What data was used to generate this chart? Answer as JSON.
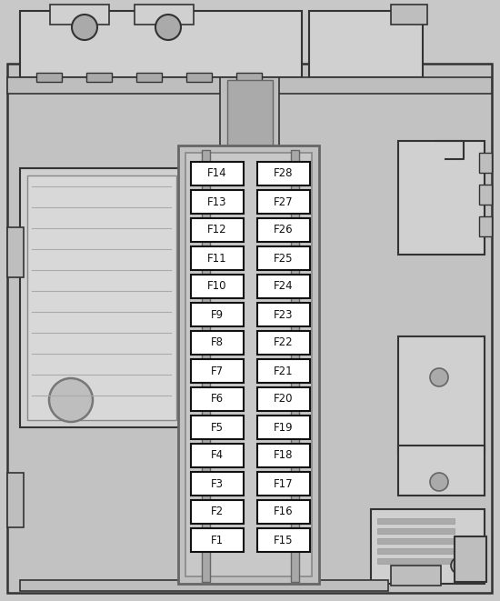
{
  "figsize": [
    5.5,
    6.61
  ],
  "dpi": 100,
  "bg_color": "#c8c8c8",
  "body_fill": "#c2c2c2",
  "body_edge": "#555555",
  "mid_fill": "#bebebe",
  "dark_edge": "#333333",
  "light_fill": "#d0d0d0",
  "lighter_fill": "#d8d8d8",
  "medium_fill": "#b8b8b8",
  "darker_fill": "#aaaaaa",
  "fuse_fill": "#ffffff",
  "fuse_edge": "#111111",
  "housing_fill": "#c0c0c0",
  "housing_inner": "#c8c8c8",
  "rail_fill": "#a8a8a8",
  "left_fuses": [
    "F14",
    "F13",
    "F12",
    "F11",
    "F10",
    "F9",
    "F8",
    "F7",
    "F6",
    "F5",
    "F4",
    "F3",
    "F2",
    "F1"
  ],
  "right_fuses": [
    "F28",
    "F27",
    "F26",
    "F25",
    "F24",
    "F23",
    "F22",
    "F21",
    "F20",
    "F19",
    "F18",
    "F17",
    "F16",
    "F15"
  ]
}
